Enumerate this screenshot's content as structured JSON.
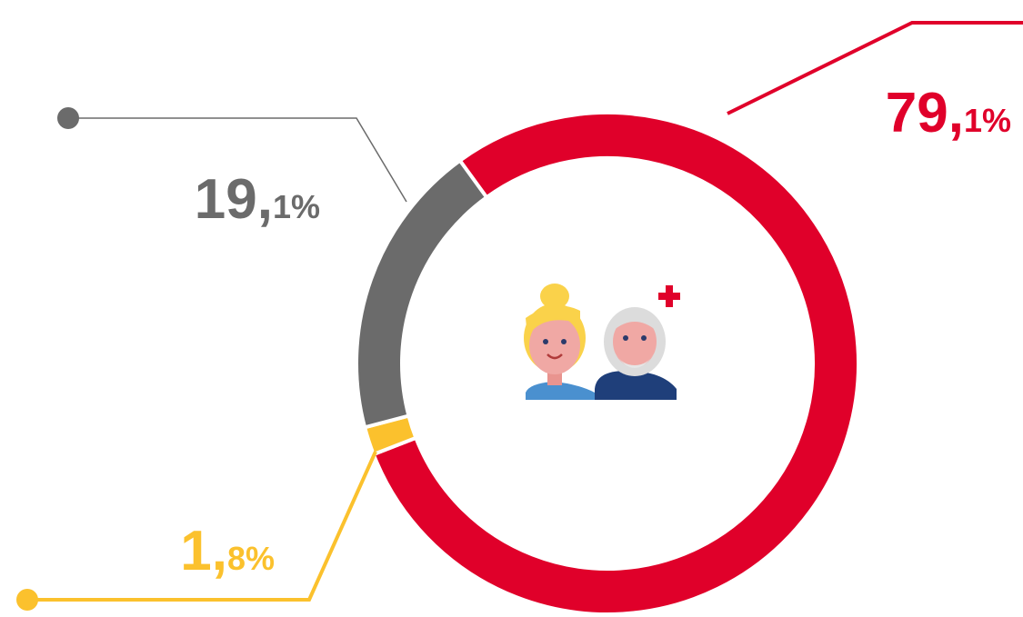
{
  "chart_data": {
    "type": "donut",
    "values": [
      79.1,
      1.8,
      19.1
    ],
    "value_labels": [
      "79,1%",
      "1,8%",
      "19,1%"
    ],
    "colors": [
      "#e0002a",
      "#fbc12d",
      "#6b6b6b"
    ]
  }
}
